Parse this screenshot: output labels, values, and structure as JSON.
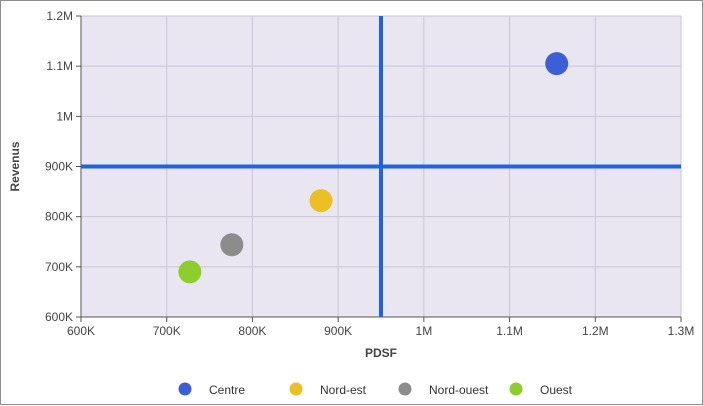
{
  "chart_data": {
    "type": "scatter",
    "xlabel": "PDSF",
    "ylabel": "Revenus",
    "xlim": [
      600000,
      1300000
    ],
    "ylim": [
      600000,
      1200000
    ],
    "x_ticks": [
      {
        "value": 600000,
        "label": "600K"
      },
      {
        "value": 700000,
        "label": "700K"
      },
      {
        "value": 800000,
        "label": "800K"
      },
      {
        "value": 900000,
        "label": "900K"
      },
      {
        "value": 1000000,
        "label": "1M"
      },
      {
        "value": 1100000,
        "label": "1.1M"
      },
      {
        "value": 1200000,
        "label": "1.2M"
      },
      {
        "value": 1300000,
        "label": "1.3M"
      }
    ],
    "y_ticks": [
      {
        "value": 600000,
        "label": "600K"
      },
      {
        "value": 700000,
        "label": "700K"
      },
      {
        "value": 800000,
        "label": "800K"
      },
      {
        "value": 900000,
        "label": "900K"
      },
      {
        "value": 1000000,
        "label": "1M"
      },
      {
        "value": 1100000,
        "label": "1.1M"
      },
      {
        "value": 1200000,
        "label": "1.2M"
      }
    ],
    "reference_lines": {
      "x": 950000,
      "y": 900000,
      "color": "#1f62e6"
    },
    "grid": true,
    "plot_background": "#e9e6f2",
    "legend_position": "bottom",
    "series": [
      {
        "name": "Centre",
        "color": "#3a5fd6",
        "x": 1155000,
        "y": 1105000
      },
      {
        "name": "Nord-est",
        "color": "#ecc023",
        "x": 880000,
        "y": 832000
      },
      {
        "name": "Nord-ouest",
        "color": "#8c8c8c",
        "x": 776000,
        "y": 744000
      },
      {
        "name": "Ouest",
        "color": "#8ccf2d",
        "x": 727000,
        "y": 690000
      }
    ]
  }
}
